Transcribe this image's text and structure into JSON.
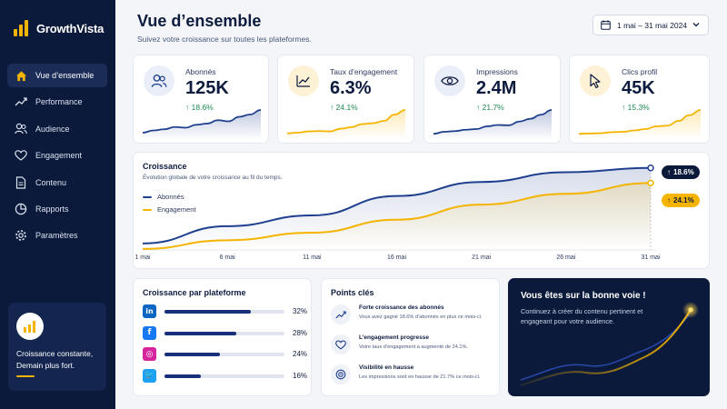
{
  "app": {
    "name": "GrowthVista"
  },
  "sidebar": {
    "items": [
      {
        "label": "Vue d’ensemble",
        "icon": "home-icon",
        "active": true
      },
      {
        "label": "Performance",
        "icon": "trend-icon",
        "active": false
      },
      {
        "label": "Audience",
        "icon": "users-icon",
        "active": false
      },
      {
        "label": "Engagement",
        "icon": "heart-icon",
        "active": false
      },
      {
        "label": "Contenu",
        "icon": "document-icon",
        "active": false
      },
      {
        "label": "Rapports",
        "icon": "pie-icon",
        "active": false
      },
      {
        "label": "Paramètres",
        "icon": "gear-icon",
        "active": false
      }
    ],
    "promo": {
      "text": "Croissance constante, Demain plus fort.",
      "icon": "bar-chart-icon"
    }
  },
  "header": {
    "title": "Vue d’ensemble",
    "subtitle": "Suivez votre croissance sur toutes les plateformes.",
    "date_range": "1 mai – 31 mai 2024"
  },
  "stats": [
    {
      "label": "Abonnés",
      "value": "125K",
      "change": "18.6%",
      "icon": "users-icon",
      "color": "#1f3f8f",
      "spark": [
        2,
        3,
        3.5,
        4.5,
        4.2,
        5.5,
        6,
        7.5,
        7,
        9,
        10,
        12
      ]
    },
    {
      "label": "Taux d’engagement",
      "value": "6.3%",
      "change": "24.1%",
      "icon": "line-chart-icon",
      "color": "#f4b400",
      "spark": [
        1,
        1.2,
        1.5,
        1.6,
        1.5,
        2.2,
        2.6,
        3.4,
        3.6,
        4.2,
        5.8,
        7
      ]
    },
    {
      "label": "Impressions",
      "value": "2.4M",
      "change": "21.7%",
      "icon": "eye-icon",
      "color": "#1f3f8f",
      "spark": [
        1,
        1.6,
        1.8,
        2.2,
        2.4,
        3.2,
        3.6,
        3.5,
        4.6,
        5.4,
        6.6,
        8
      ]
    },
    {
      "label": "Clics profil",
      "value": "45K",
      "change": "15.3%",
      "icon": "cursor-icon",
      "color": "#f4b400",
      "spark": [
        1,
        1.1,
        1.2,
        1.5,
        1.6,
        2,
        2.4,
        3.2,
        3.4,
        4.8,
        6.5,
        8
      ]
    }
  ],
  "growth": {
    "title": "Croissance",
    "subtitle": "Évolution globale de votre croissance au fil du temps.",
    "legend": [
      "Abonnés",
      "Engagement"
    ],
    "badge_followers": "18.6%",
    "badge_engagement": "24.1%"
  },
  "chart_data": {
    "type": "area",
    "x": [
      "1 mai",
      "6 mai",
      "11 mai",
      "16 mai",
      "21 mai",
      "26 mai",
      "31 mai"
    ],
    "series": [
      {
        "name": "Abonnés",
        "color": "#1f3f8f",
        "values": [
          3,
          11,
          16,
          25,
          31.5,
          36,
          38
        ]
      },
      {
        "name": "Engagement",
        "color": "#f4b400",
        "values": [
          0.5,
          4.5,
          8,
          14,
          21,
          26,
          31
        ]
      }
    ],
    "ylim": [
      0,
      40
    ],
    "grid": false
  },
  "platforms": {
    "title": "Croissance par plateforme",
    "items": [
      {
        "name": "linkedin",
        "glyph": "in",
        "color": "#0a66c2",
        "share": 0.72,
        "pct": "32%"
      },
      {
        "name": "facebook",
        "glyph": "f",
        "color": "#1877f2",
        "share": 0.6,
        "pct": "28%"
      },
      {
        "name": "instagram",
        "glyph": "◎",
        "color": "#d6249f",
        "share": 0.46,
        "pct": "24%"
      },
      {
        "name": "twitter",
        "glyph": "🐦",
        "color": "#1da1f2",
        "share": 0.3,
        "pct": "16%"
      }
    ]
  },
  "keypoints": {
    "title": "Points clés",
    "items": [
      {
        "title": "Forte croissance des abonnés",
        "text": "Vous avez gagné 18.6% d’abonnés en plus ce mois-ci.",
        "icon": "growth-icon"
      },
      {
        "title": "L’engagement progresse",
        "text": "Votre taux d’engagement a augmenté de 24.1%.",
        "icon": "heart-icon"
      },
      {
        "title": "Visibilité en hausse",
        "text": "Les impressions sont en hausse de 21.7% ce mois-ci.",
        "icon": "target-icon"
      }
    ]
  },
  "motivation": {
    "title": "Vous êtes sur la bonne voie !",
    "text": "Continuez à créer du contenu pertinent et engageant pour votre audience."
  }
}
